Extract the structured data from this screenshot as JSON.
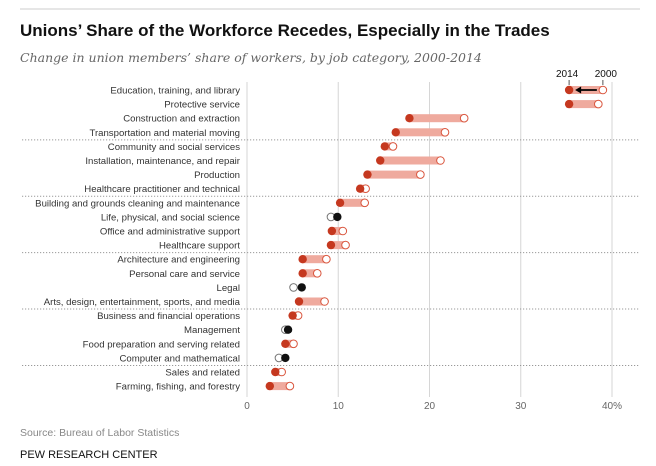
{
  "chart_data": {
    "type": "dumbbell",
    "title": "Unions’ Share of the Workforce Recedes, Especially in the Trades",
    "subtitle": "Change in union members’ share of workers, by job category, 2000-2014",
    "series_labels": {
      "end": "2014",
      "start": "2000"
    },
    "xlim": [
      0,
      40
    ],
    "xticks": [
      0,
      10,
      20,
      30,
      40
    ],
    "xtick_labels": [
      "0",
      "10",
      "20",
      "30",
      "40%"
    ],
    "grid": true,
    "group_separators_after": [
      4,
      8,
      12,
      16,
      20
    ],
    "categories": [
      "Education, training, and library",
      "Protective service",
      "Construction and extraction",
      "Transportation and material moving",
      "Community and social services",
      "Installation, maintenance, and repair",
      "Production",
      "Healthcare practitioner and technical",
      "Building and grounds cleaning and maintenance",
      "Life, physical, and social science",
      "Office and administrative support",
      "Healthcare support",
      "Architecture and engineering",
      "Personal care and service",
      "Legal",
      "Arts, design, entertainment, sports, and media",
      "Business and financial operations",
      "Management",
      "Food preparation and serving related",
      "Computer and mathematical",
      "Sales and related",
      "Farming, fishing, and forestry"
    ],
    "series": [
      {
        "name": "2000",
        "values": [
          39.0,
          38.5,
          23.8,
          21.7,
          16.0,
          21.2,
          19.0,
          13.0,
          12.9,
          9.2,
          10.5,
          10.8,
          8.7,
          7.7,
          5.1,
          8.5,
          5.6,
          4.2,
          5.1,
          3.5,
          3.8,
          4.7
        ]
      },
      {
        "name": "2014",
        "values": [
          35.3,
          35.3,
          17.8,
          16.3,
          15.1,
          14.6,
          13.2,
          12.4,
          10.2,
          9.9,
          9.3,
          9.2,
          6.1,
          6.1,
          6.0,
          5.7,
          5.0,
          4.5,
          4.2,
          4.2,
          3.1,
          2.5
        ]
      }
    ],
    "colors": {
      "decline": "#c5381f",
      "decline_bar": "#efaa9e",
      "decline_open": "#d9553d",
      "increase": "#111111",
      "increase_open": "#777777",
      "grid": "#d6d6d6"
    }
  },
  "footer": {
    "source": "Source: Bureau of Labor Statistics",
    "brand": "PEW RESEARCH CENTER"
  }
}
